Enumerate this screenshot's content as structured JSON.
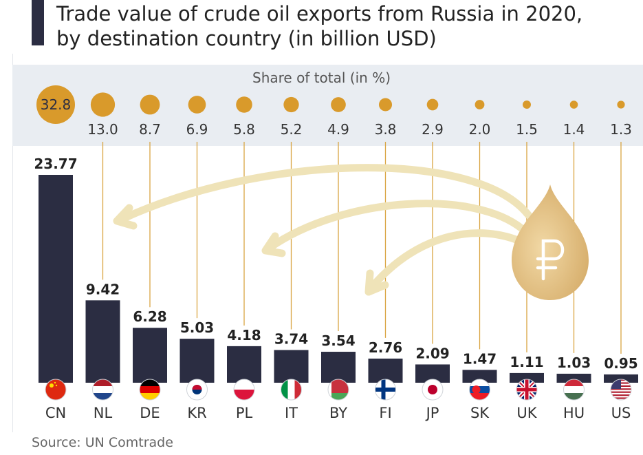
{
  "header": {
    "title": "Trade value of crude oil exports from Russia in 2020,\nby destination country (in billion USD)"
  },
  "share_panel": {
    "title": "Share of total (in %)"
  },
  "footer": {
    "source": "Source: UN Comtrade"
  },
  "icons": {
    "center_icon": "ruble-oil-drop-icon"
  },
  "colors": {
    "bar": "#2b2d42",
    "share_dot": "#d99a2b",
    "connector": "#d9a441",
    "arrow": "#efe3b8",
    "drop": "#d6ad6a",
    "panel_bg": "#e9edf2"
  },
  "chart_data": {
    "type": "bar",
    "title": "Trade value of crude oil exports from Russia in 2020, by destination country (in billion USD)",
    "categories": [
      "CN",
      "NL",
      "DE",
      "KR",
      "PL",
      "IT",
      "BY",
      "FI",
      "JP",
      "SK",
      "UK",
      "HU",
      "US"
    ],
    "values": [
      23.77,
      9.42,
      6.28,
      5.03,
      4.18,
      3.74,
      3.54,
      2.76,
      2.09,
      1.47,
      1.11,
      1.03,
      0.95
    ],
    "value_labels": [
      "23.77",
      "9.42",
      "6.28",
      "5.03",
      "4.18",
      "3.74",
      "3.54",
      "2.76",
      "2.09",
      "1.47",
      "1.11",
      "1.03",
      "0.95"
    ],
    "share_labels": [
      "32.8",
      "13.0",
      "8.7",
      "6.9",
      "5.8",
      "5.2",
      "4.9",
      "3.8",
      "2.9",
      "2.0",
      "1.5",
      "1.4",
      "1.3"
    ],
    "share_values": [
      32.8,
      13.0,
      8.7,
      6.9,
      5.8,
      5.2,
      4.9,
      3.8,
      2.9,
      2.0,
      1.5,
      1.4,
      1.3
    ],
    "flags": [
      "flag-cn-icon",
      "flag-nl-icon",
      "flag-de-icon",
      "flag-kr-icon",
      "flag-pl-icon",
      "flag-it-icon",
      "flag-by-icon",
      "flag-fi-icon",
      "flag-jp-icon",
      "flag-sk-icon",
      "flag-uk-icon",
      "flag-hu-icon",
      "flag-us-icon"
    ],
    "ylim": [
      0,
      23.77
    ],
    "grid": false,
    "legend": "none"
  }
}
